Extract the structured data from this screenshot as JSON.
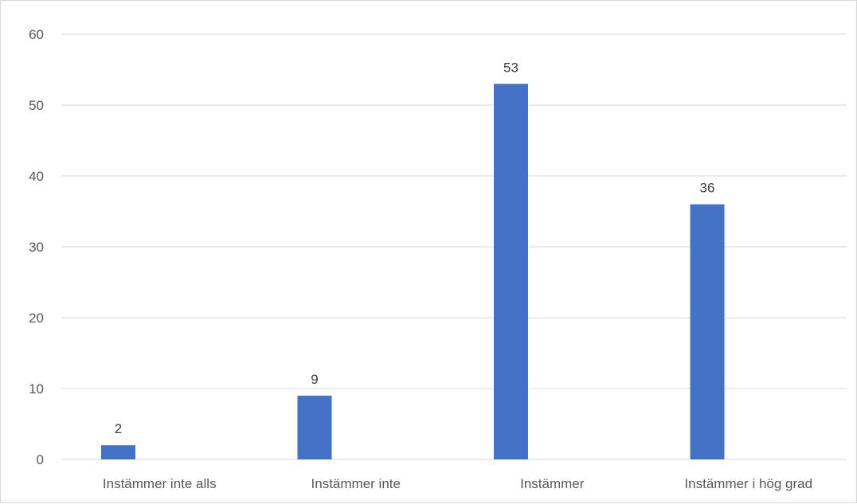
{
  "chart_data": {
    "type": "bar",
    "title": "",
    "xlabel": "",
    "ylabel": "",
    "categories": [
      "Instämmer inte alls",
      "Instämmer inte",
      "Instämmer",
      "Instämmer i hög grad"
    ],
    "series": [
      {
        "values": [
          2,
          9,
          53,
          36
        ],
        "color": "#4472c4"
      }
    ],
    "ylim": [
      0,
      60
    ],
    "yticks": [
      0,
      10,
      20,
      30,
      40,
      50,
      60
    ],
    "data_labels": true,
    "grid": true,
    "legend": "none"
  }
}
